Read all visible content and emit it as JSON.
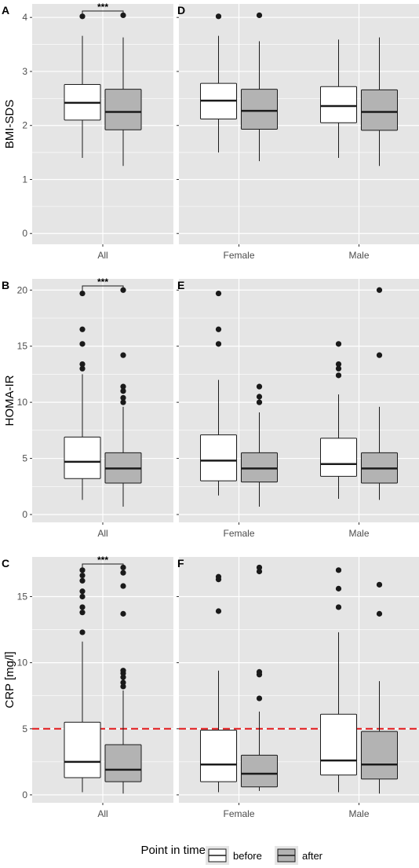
{
  "legend": {
    "title": "Point in time",
    "entries": [
      {
        "label": "before",
        "fill": "#ffffff"
      },
      {
        "label": "after",
        "fill": "#b3b3b3"
      }
    ]
  },
  "colors": {
    "panel_bg": "#e5e5e5",
    "grid": "#ffffff",
    "box_before": "#ffffff",
    "box_after": "#b3b3b3",
    "box_stroke": "#1a1a1a",
    "outlier": "#1a1a1a",
    "reference_line": "#e41a1c"
  },
  "chart_data": [
    {
      "panel": "A",
      "type": "box",
      "ylabel": "BMI-SDS",
      "xlabel": "",
      "categories": [
        "All"
      ],
      "ylim": [
        -0.2,
        4.25
      ],
      "yticks": [
        0,
        1,
        2,
        3,
        4
      ],
      "significance": {
        "label": "***",
        "category": "All"
      },
      "series": [
        {
          "name": "before",
          "boxes": [
            {
              "category": "All",
              "lower_whisker": 1.4,
              "q1": 2.1,
              "median": 2.42,
              "q3": 2.76,
              "upper_whisker": 3.66,
              "outliers": [
                4.02
              ]
            }
          ]
        },
        {
          "name": "after",
          "boxes": [
            {
              "category": "All",
              "lower_whisker": 1.25,
              "q1": 1.92,
              "median": 2.25,
              "q3": 2.67,
              "upper_whisker": 3.63,
              "outliers": [
                4.04
              ]
            }
          ]
        }
      ]
    },
    {
      "panel": "D",
      "type": "box",
      "ylabel": "",
      "xlabel": "",
      "categories": [
        "Female",
        "Male"
      ],
      "ylim": [
        -0.2,
        4.25
      ],
      "yticks": [
        0,
        1,
        2,
        3,
        4
      ],
      "series": [
        {
          "name": "before",
          "boxes": [
            {
              "category": "Female",
              "lower_whisker": 1.5,
              "q1": 2.12,
              "median": 2.46,
              "q3": 2.78,
              "upper_whisker": 3.66,
              "outliers": [
                4.02
              ]
            },
            {
              "category": "Male",
              "lower_whisker": 1.4,
              "q1": 2.05,
              "median": 2.36,
              "q3": 2.72,
              "upper_whisker": 3.59,
              "outliers": []
            }
          ]
        },
        {
          "name": "after",
          "boxes": [
            {
              "category": "Female",
              "lower_whisker": 1.34,
              "q1": 1.93,
              "median": 2.27,
              "q3": 2.67,
              "upper_whisker": 3.56,
              "outliers": [
                4.04
              ]
            },
            {
              "category": "Male",
              "lower_whisker": 1.25,
              "q1": 1.91,
              "median": 2.25,
              "q3": 2.66,
              "upper_whisker": 3.63,
              "outliers": []
            }
          ]
        }
      ]
    },
    {
      "panel": "B",
      "type": "box",
      "ylabel": "HOMA-IR",
      "xlabel": "",
      "categories": [
        "All"
      ],
      "ylim": [
        -0.7,
        21.0
      ],
      "yticks": [
        0,
        5,
        10,
        15,
        20
      ],
      "significance": {
        "label": "***",
        "category": "All"
      },
      "series": [
        {
          "name": "before",
          "boxes": [
            {
              "category": "All",
              "lower_whisker": 1.3,
              "q1": 3.2,
              "median": 4.7,
              "q3": 6.9,
              "upper_whisker": 12.5,
              "outliers": [
                13.0,
                13.4,
                15.2,
                16.5,
                19.7
              ]
            }
          ]
        },
        {
          "name": "after",
          "boxes": [
            {
              "category": "All",
              "lower_whisker": 0.7,
              "q1": 2.8,
              "median": 4.1,
              "q3": 5.5,
              "upper_whisker": 9.6,
              "outliers": [
                10.0,
                10.4,
                11.0,
                11.4,
                14.2,
                20.0
              ]
            }
          ]
        }
      ]
    },
    {
      "panel": "E",
      "type": "box",
      "ylabel": "",
      "xlabel": "",
      "categories": [
        "Female",
        "Male"
      ],
      "ylim": [
        -0.7,
        21.0
      ],
      "yticks": [
        0,
        5,
        10,
        15,
        20
      ],
      "series": [
        {
          "name": "before",
          "boxes": [
            {
              "category": "Female",
              "lower_whisker": 1.7,
              "q1": 3.0,
              "median": 4.8,
              "q3": 7.1,
              "upper_whisker": 12.0,
              "outliers": [
                15.2,
                16.5,
                19.7
              ]
            },
            {
              "category": "Male",
              "lower_whisker": 1.4,
              "q1": 3.4,
              "median": 4.5,
              "q3": 6.8,
              "upper_whisker": 10.7,
              "outliers": [
                12.4,
                13.0,
                13.4,
                15.2
              ]
            }
          ]
        },
        {
          "name": "after",
          "boxes": [
            {
              "category": "Female",
              "lower_whisker": 0.7,
              "q1": 2.9,
              "median": 4.1,
              "q3": 5.5,
              "upper_whisker": 9.1,
              "outliers": [
                10.0,
                10.5,
                11.4
              ]
            },
            {
              "category": "Male",
              "lower_whisker": 1.3,
              "q1": 2.8,
              "median": 4.1,
              "q3": 5.5,
              "upper_whisker": 9.6,
              "outliers": [
                14.2,
                20.0
              ]
            }
          ]
        }
      ]
    },
    {
      "panel": "C",
      "type": "box",
      "ylabel": "CRP [mg/l]",
      "xlabel": "",
      "categories": [
        "All"
      ],
      "ylim": [
        -0.6,
        18.0
      ],
      "yticks": [
        0,
        5,
        10,
        15
      ],
      "reference_line": 5,
      "significance": {
        "label": "***",
        "category": "All"
      },
      "series": [
        {
          "name": "before",
          "boxes": [
            {
              "category": "All",
              "lower_whisker": 0.2,
              "q1": 1.3,
              "median": 2.5,
              "q3": 5.5,
              "upper_whisker": 11.6,
              "outliers": [
                12.3,
                13.8,
                14.2,
                15.0,
                15.4,
                16.2,
                16.6,
                17.0
              ]
            }
          ]
        },
        {
          "name": "after",
          "boxes": [
            {
              "category": "All",
              "lower_whisker": 0.1,
              "q1": 1.0,
              "median": 1.9,
              "q3": 3.8,
              "upper_whisker": 7.9,
              "outliers": [
                8.2,
                8.5,
                8.9,
                9.2,
                9.4,
                13.7,
                15.8,
                16.8,
                17.2
              ]
            }
          ]
        }
      ]
    },
    {
      "panel": "F",
      "type": "box",
      "ylabel": "",
      "xlabel": "",
      "categories": [
        "Female",
        "Male"
      ],
      "ylim": [
        -0.6,
        18.0
      ],
      "yticks": [
        0,
        5,
        10,
        15
      ],
      "reference_line": 5,
      "series": [
        {
          "name": "before",
          "boxes": [
            {
              "category": "Female",
              "lower_whisker": 0.2,
              "q1": 1.0,
              "median": 2.3,
              "q3": 4.9,
              "upper_whisker": 9.4,
              "outliers": [
                13.9,
                16.3,
                16.5
              ]
            },
            {
              "category": "Male",
              "lower_whisker": 0.2,
              "q1": 1.5,
              "median": 2.6,
              "q3": 6.1,
              "upper_whisker": 12.3,
              "outliers": [
                14.2,
                15.6,
                17.0
              ]
            }
          ]
        },
        {
          "name": "after",
          "boxes": [
            {
              "category": "Female",
              "lower_whisker": 0.3,
              "q1": 0.6,
              "median": 1.6,
              "q3": 3.0,
              "upper_whisker": 6.3,
              "outliers": [
                7.3,
                9.1,
                9.3,
                16.9,
                17.2
              ]
            },
            {
              "category": "Male",
              "lower_whisker": 0.1,
              "q1": 1.2,
              "median": 2.3,
              "q3": 4.8,
              "upper_whisker": 8.6,
              "outliers": [
                13.7,
                15.9
              ]
            }
          ]
        }
      ]
    }
  ]
}
